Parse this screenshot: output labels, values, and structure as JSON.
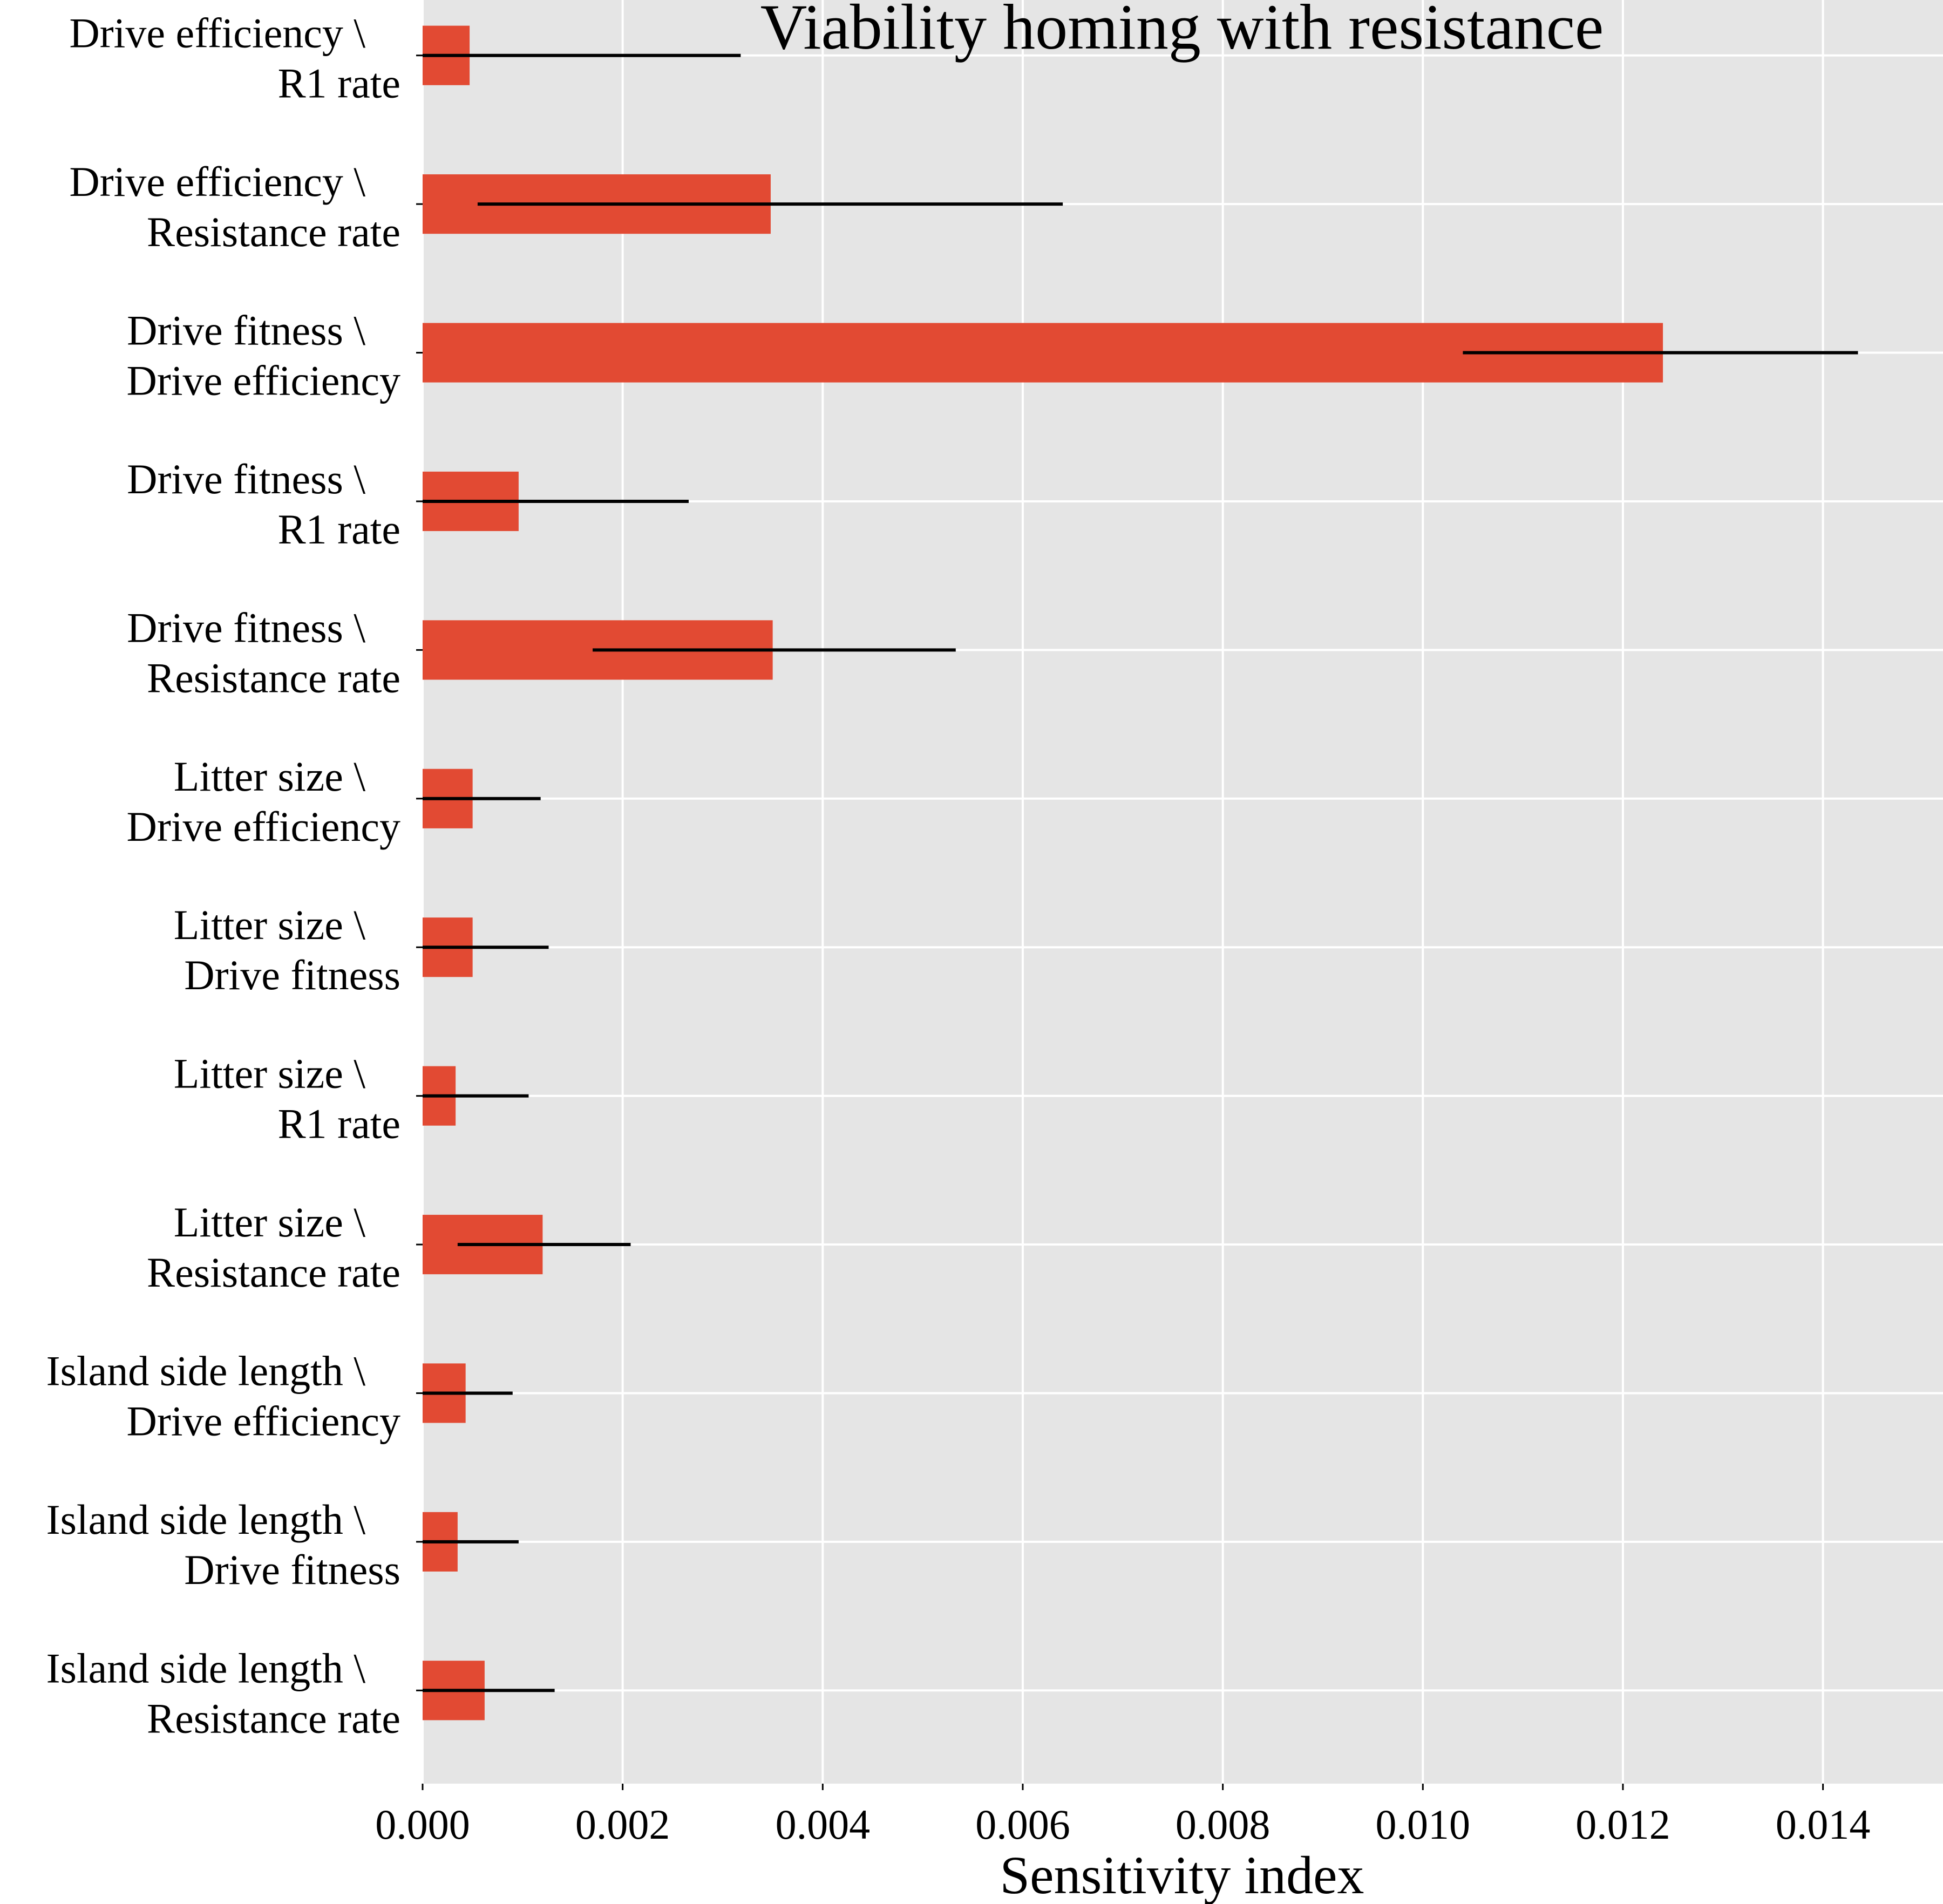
{
  "chart_data": {
    "type": "bar",
    "orientation": "horizontal",
    "title": "Viability homing with resistance",
    "xlabel": "Sensitivity index",
    "ylabel": "",
    "xlim": [
      0,
      0.0152
    ],
    "xticks": [
      "0.000",
      "0.002",
      "0.004",
      "0.006",
      "0.008",
      "0.010",
      "0.012",
      "0.014"
    ],
    "xtick_values": [
      0,
      0.002,
      0.004,
      0.006,
      0.008,
      0.01,
      0.012,
      0.014
    ],
    "grid": true,
    "categories": [
      [
        "Drive efficiency \\",
        "R1 rate"
      ],
      [
        "Drive efficiency \\",
        "Resistance rate"
      ],
      [
        "Drive fitness \\",
        "Drive efficiency"
      ],
      [
        "Drive fitness \\",
        "R1 rate"
      ],
      [
        "Drive fitness \\",
        "Resistance rate"
      ],
      [
        "Litter size \\",
        "Drive efficiency"
      ],
      [
        "Litter size \\",
        "Drive fitness"
      ],
      [
        "Litter size \\",
        "R1 rate"
      ],
      [
        "Litter size \\",
        "Resistance rate"
      ],
      [
        "Island side length \\",
        "Drive efficiency"
      ],
      [
        "Island side length \\",
        "Drive fitness"
      ],
      [
        "Island side length \\",
        "Resistance rate"
      ]
    ],
    "values": [
      0.00047,
      0.00348,
      0.0124,
      0.00096,
      0.0035,
      0.0005,
      0.0005,
      0.00033,
      0.0012,
      0.00043,
      0.00035,
      0.00062
    ],
    "error_low": [
      -0.0027,
      0.00055,
      0.0104,
      -0.00075,
      0.0017,
      -0.0007,
      -0.0008,
      -0.0004,
      0.00035,
      -0.0005,
      -0.0003,
      -0.0007
    ],
    "error_high": [
      0.00318,
      0.0064,
      0.01435,
      0.00266,
      0.00533,
      0.00118,
      0.00126,
      0.00106,
      0.00208,
      0.0009,
      0.00096,
      0.00132
    ],
    "colors": {
      "bar": "#E24A33",
      "error": "#000000",
      "panel": "#E5E5E5",
      "grid": "#FFFFFF"
    }
  }
}
